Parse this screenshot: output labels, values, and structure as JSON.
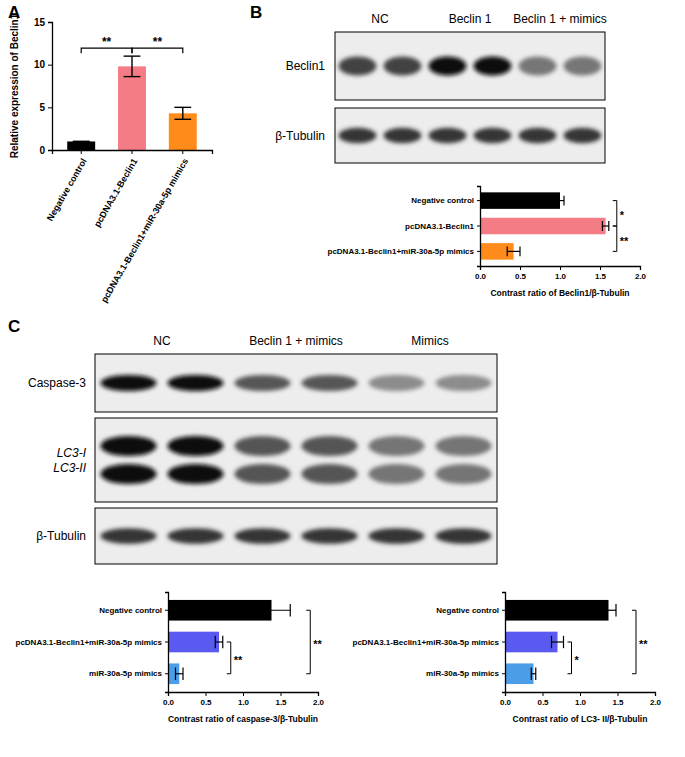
{
  "panel_labels": [
    "A",
    "B",
    "C"
  ],
  "blots": [
    {
      "lanes": [
        "NC",
        "Beclin 1",
        "Beclin 1 + mimics"
      ],
      "rows": [
        [
          "Beclin1"
        ],
        [
          "β-Tubulin"
        ]
      ]
    },
    {
      "lanes": [
        "NC",
        "Beclin 1 + mimics",
        "Mimics"
      ],
      "rows": [
        [
          "Caspase-3"
        ],
        [
          "LC3-I",
          "LC3-II"
        ],
        [
          "β-Tubulin"
        ]
      ]
    }
  ],
  "chart_data": [
    {
      "type": "bar",
      "categories": [
        "Negative control",
        "pcDNA3.1-Beclin1",
        "pcDNA3.1-Beclin1+miR-30a-5p mimics"
      ],
      "values": [
        1.0,
        9.8,
        4.3
      ],
      "error": [
        0,
        1.2,
        0.7
      ],
      "colors": [
        "#000000",
        "#f47c84",
        "#ff8c1a"
      ],
      "y_label": "Relative expression of Beclin1",
      "ylim": [
        0,
        15
      ],
      "yticks": [
        0,
        5,
        10,
        15
      ],
      "annotations": [
        {
          "text": "**",
          "from": "Negative control",
          "to": "pcDNA3.1-Beclin1"
        },
        {
          "text": "**",
          "from": "pcDNA3.1-Beclin1",
          "to": "pcDNA3.1-Beclin1+miR-30a-5p mimics"
        }
      ]
    },
    {
      "type": "bar",
      "orientation": "horizontal",
      "categories": [
        "Negative control",
        "pcDNA3.1-Beclin1",
        "pcDNA3.1-Beclin1+miR-30a-5p mimics"
      ],
      "values": [
        1.0,
        1.57,
        0.42
      ],
      "error": [
        0.05,
        0.04,
        0.08
      ],
      "colors": [
        "#000000",
        "#f47c84",
        "#ff8c1a"
      ],
      "x_label": "Contrast ratio of Beclin1/β-Tubulin",
      "xlim": [
        0,
        2
      ],
      "xticks": [
        {
          "value": 0,
          "label": "0.0"
        },
        {
          "value": 0.5,
          "label": "0.5"
        },
        {
          "value": 1,
          "label": "1.0"
        },
        {
          "value": 1.5,
          "label": "1.5"
        },
        {
          "value": 2,
          "label": "2.0"
        }
      ],
      "annotations": [
        {
          "text": "*",
          "from": "Negative control",
          "to": "pcDNA3.1-Beclin1"
        },
        {
          "text": "**",
          "from": "pcDNA3.1-Beclin1",
          "to": "pcDNA3.1-Beclin1+miR-30a-5p mimics"
        }
      ]
    },
    {
      "type": "bar",
      "orientation": "horizontal",
      "categories": [
        "Negative control",
        "pcDNA3.1-Beclin1+miR-30a-5p mimics",
        "miR-30a-5p mimics"
      ],
      "values": [
        1.38,
        0.68,
        0.15
      ],
      "error": [
        0.25,
        0.05,
        0.05
      ],
      "colors": [
        "#000000",
        "#5a5af0",
        "#4a9de6"
      ],
      "x_label": "Contrast ratio of caspase-3/β-Tubulin",
      "xlim": [
        0,
        2
      ],
      "xticks": [
        {
          "value": 0,
          "label": "0.0"
        },
        {
          "value": 0.5,
          "label": "0.5"
        },
        {
          "value": 1,
          "label": "1.0"
        },
        {
          "value": 1.5,
          "label": "1.5"
        },
        {
          "value": 2,
          "label": "2.0"
        }
      ],
      "annotations": [
        {
          "text": "**",
          "from": "pcDNA3.1-Beclin1+miR-30a-5p mimics",
          "to": "miR-30a-5p mimics"
        },
        {
          "text": "**",
          "from": "Negative control",
          "to": "miR-30a-5p mimics"
        }
      ]
    },
    {
      "type": "bar",
      "orientation": "horizontal",
      "categories": [
        "Negative control",
        "pcDNA3.1-Beclin1+miR-30a-5p mimics",
        "miR-30a-5p mimics"
      ],
      "values": [
        1.38,
        0.7,
        0.38
      ],
      "error": [
        0.1,
        0.08,
        0.03
      ],
      "colors": [
        "#000000",
        "#5a5af0",
        "#4a9de6"
      ],
      "x_label": "Contrast ratio of LC3- II/β-Tubulin",
      "xlim": [
        0,
        2
      ],
      "xticks": [
        {
          "value": 0,
          "label": "0.0"
        },
        {
          "value": 0.5,
          "label": "0.5"
        },
        {
          "value": 1,
          "label": "1.0"
        },
        {
          "value": 1.5,
          "label": "1.5"
        },
        {
          "value": 2,
          "label": "2.0"
        }
      ],
      "annotations": [
        {
          "text": "*",
          "from": "pcDNA3.1-Beclin1+miR-30a-5p mimics",
          "to": "miR-30a-5p mimics"
        },
        {
          "text": "**",
          "from": "Negative control",
          "to": "miR-30a-5p mimics"
        }
      ]
    }
  ]
}
